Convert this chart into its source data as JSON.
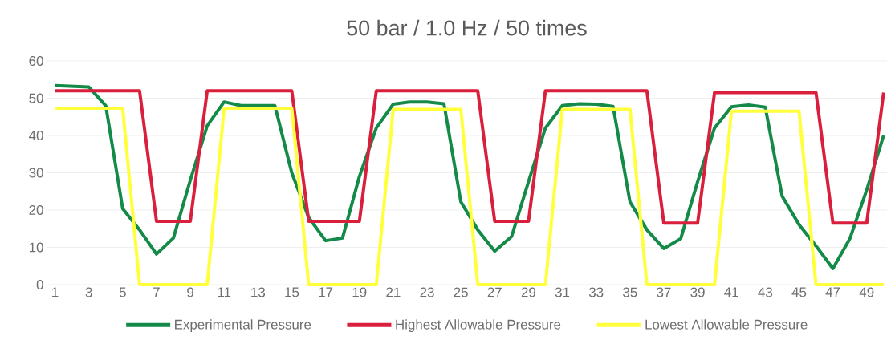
{
  "chart_data": {
    "type": "line",
    "title": "50 bar / 1.0 Hz / 50 times",
    "x": [
      1,
      2,
      3,
      4,
      5,
      6,
      7,
      8,
      9,
      10,
      11,
      12,
      13,
      14,
      15,
      16,
      17,
      18,
      19,
      20,
      21,
      22,
      23,
      24,
      25,
      26,
      27,
      28,
      29,
      30,
      31,
      32,
      33,
      34,
      35,
      36,
      37,
      38,
      39,
      40,
      41,
      42,
      43,
      44,
      45,
      46,
      47,
      48,
      49,
      50
    ],
    "series": [
      {
        "name": "Experimental Pressure",
        "color": "#138a48",
        "values": [
          53.4,
          53.2,
          53,
          48,
          20.4,
          14.7,
          8.2,
          12.5,
          28,
          42.6,
          49,
          48,
          48,
          48,
          30,
          18,
          11.8,
          12.5,
          29,
          42,
          48.4,
          49,
          49,
          48.5,
          22.2,
          14.7,
          9,
          12.9,
          27.6,
          42,
          48,
          48.5,
          48.4,
          47.8,
          22.2,
          14.7,
          9.7,
          12.3,
          27.6,
          42,
          47.7,
          48.2,
          47.6,
          23.7,
          16.1,
          10.4,
          4.3,
          12.3,
          25.4,
          40
        ]
      },
      {
        "name": "Highest Allowable Pressure",
        "color": "#d91f3c",
        "values": [
          52,
          52,
          52,
          52,
          52,
          52,
          17,
          17,
          17,
          52,
          52,
          52,
          52,
          52,
          52,
          17,
          17,
          17,
          17,
          52,
          52,
          52,
          52,
          52,
          52,
          52,
          17,
          17,
          17,
          52,
          52,
          52,
          52,
          52,
          52,
          52,
          16.5,
          16.5,
          16.5,
          51.5,
          51.5,
          51.5,
          51.5,
          51.5,
          51.5,
          51.5,
          16.5,
          16.5,
          16.5,
          51.5
        ]
      },
      {
        "name": "Lowest Allowable Pressure",
        "color": "#ffff3c",
        "values": [
          47.3,
          47.3,
          47.3,
          47.3,
          47.3,
          0,
          0,
          0,
          0,
          0,
          47.3,
          47.3,
          47.3,
          47.3,
          47.3,
          0,
          0,
          0,
          0,
          0,
          47,
          47,
          47,
          47,
          47,
          0,
          0,
          0,
          0,
          0,
          47,
          47,
          47,
          47,
          47,
          0,
          0,
          0,
          0,
          0,
          46.5,
          46.5,
          46.5,
          46.5,
          46.5,
          0,
          0,
          0,
          0,
          0
        ]
      }
    ],
    "xlim": [
      0.5,
      50.2
    ],
    "ylim": [
      0,
      60
    ],
    "xticks": [
      1,
      3,
      5,
      7,
      9,
      11,
      13,
      15,
      17,
      19,
      21,
      23,
      25,
      27,
      29,
      31,
      33,
      35,
      37,
      39,
      41,
      43,
      45,
      47,
      49
    ],
    "yticks": [
      0,
      10,
      20,
      30,
      40,
      50,
      60
    ],
    "grid": "y",
    "legend": "bottom"
  }
}
